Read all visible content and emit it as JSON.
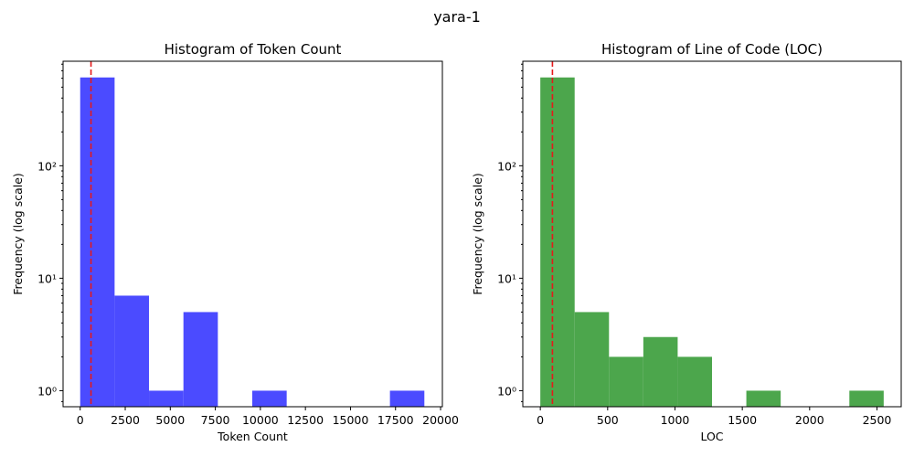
{
  "figure": {
    "suptitle": "yara-1"
  },
  "colors": {
    "token_bar": "#4b4bff",
    "loc_bar": "#4ca64c",
    "median_line": "#e6191a"
  },
  "chart_data": [
    {
      "type": "bar",
      "title": "Histogram of Token Count",
      "xlabel": "Token Count",
      "ylabel": "Frequency (log scale)",
      "yscale": "log",
      "xlim": [
        -950,
        20100
      ],
      "ylim": [
        0.72,
        850
      ],
      "xticks": [
        0,
        2500,
        5000,
        7500,
        10000,
        12500,
        15000,
        17500,
        20000
      ],
      "yticks": [
        {
          "value": 1,
          "label": "10⁰"
        },
        {
          "value": 10,
          "label": "10¹"
        },
        {
          "value": 100,
          "label": "10²"
        }
      ],
      "bin_edges": [
        0,
        1910,
        3820,
        5730,
        7640,
        9550,
        11460,
        13370,
        15280,
        17190,
        19100
      ],
      "values": [
        610,
        7,
        1,
        5,
        0,
        1,
        0,
        0,
        0,
        1
      ],
      "median_line": 600,
      "grid": false,
      "bar_color": "#4b4bff"
    },
    {
      "type": "bar",
      "title": "Histogram of Line of Code (LOC)",
      "xlabel": "LOC",
      "ylabel": "Frequency (log scale)",
      "yscale": "log",
      "xlim": [
        -130,
        2680
      ],
      "ylim": [
        0.72,
        850
      ],
      "xticks": [
        0,
        500,
        1000,
        1500,
        2000,
        2500
      ],
      "yticks": [
        {
          "value": 1,
          "label": "10⁰"
        },
        {
          "value": 10,
          "label": "10¹"
        },
        {
          "value": 100,
          "label": "10²"
        }
      ],
      "bin_edges": [
        0,
        255,
        510,
        765,
        1020,
        1275,
        1530,
        1785,
        2040,
        2295,
        2550
      ],
      "values": [
        610,
        5,
        2,
        3,
        2,
        0,
        1,
        0,
        0,
        1
      ],
      "median_line": 90,
      "grid": false,
      "bar_color": "#4ca64c"
    }
  ]
}
